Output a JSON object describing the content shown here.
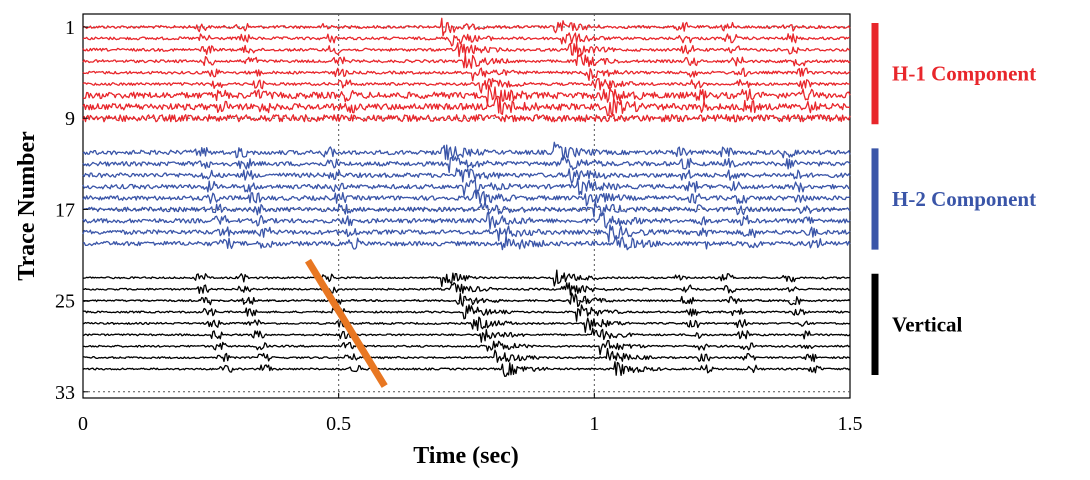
{
  "chart_data": {
    "type": "line",
    "title": "",
    "xlabel": "Time (sec)",
    "ylabel": "Trace Number",
    "xlim": [
      0,
      1.5
    ],
    "ylim": [
      33,
      1
    ],
    "x_ticks": [
      "0",
      "0.5",
      "1",
      "1.5"
    ],
    "x_tick_values": [
      0,
      0.5,
      1,
      1.5
    ],
    "y_ticks": [
      "1",
      "9",
      "17",
      "25",
      "33"
    ],
    "y_tick_values": [
      1,
      9,
      17,
      25,
      33
    ],
    "grid": "dotted",
    "components": [
      {
        "name": "H-1 Component",
        "color": "#e8262b",
        "traces": [
          1,
          2,
          3,
          4,
          5,
          6,
          7,
          8,
          9
        ],
        "arrivals_sec": [
          [
            0.7,
            0.82
          ],
          [
            0.92,
            1.04
          ]
        ]
      },
      {
        "name": "H-2 Component",
        "color": "#3a55a8",
        "traces": [
          12,
          13,
          14,
          15,
          16,
          17,
          18,
          19,
          20
        ],
        "arrivals_sec": [
          [
            0.7,
            0.82
          ],
          [
            0.92,
            1.04
          ]
        ]
      },
      {
        "name": "Vertical",
        "color": "#000000",
        "traces": [
          23,
          24,
          25,
          26,
          27,
          28,
          29,
          30,
          31
        ],
        "arrivals_sec": [
          [
            0.7,
            0.82
          ],
          [
            0.92,
            1.04
          ]
        ]
      }
    ],
    "annotations": [
      {
        "type": "line",
        "color": "#e87722",
        "from": {
          "x": 0.44,
          "trace": 21.5
        },
        "to": {
          "x": 0.59,
          "trace": 32.5
        }
      }
    ]
  }
}
